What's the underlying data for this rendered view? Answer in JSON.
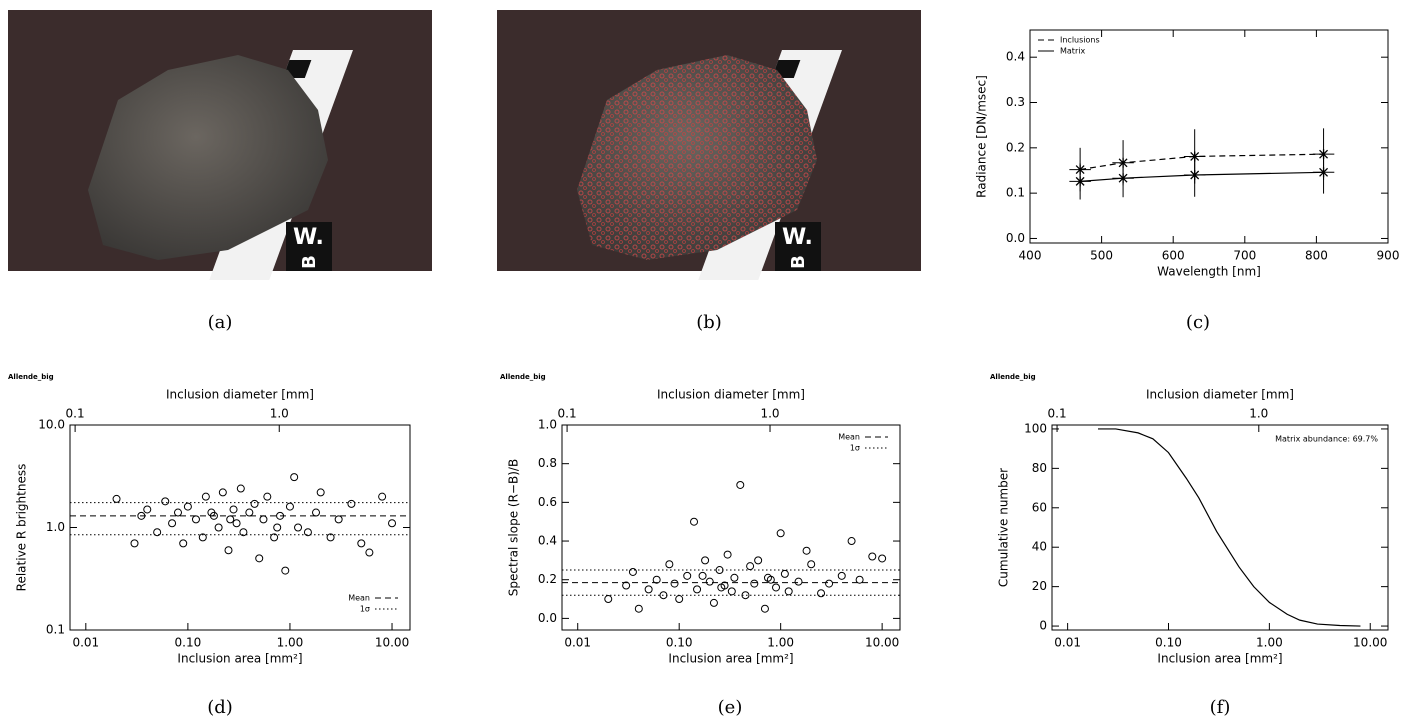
{
  "photos": [
    {
      "ruler_labels": [
        "W.",
        "B"
      ]
    },
    {
      "ruler_labels": [
        "W.",
        "B"
      ]
    }
  ],
  "captions": [
    "(a)",
    "(b)",
    "(c)",
    "(d)",
    "(e)",
    "(f)"
  ],
  "chart_data": [
    {
      "type": "line",
      "xlabel": "Wavelength [nm]",
      "ylabel": "Radiance [DN/msec]",
      "xlim": [
        400,
        900
      ],
      "xticks": [
        400,
        500,
        600,
        700,
        800,
        900
      ],
      "ylim": [
        -0.01,
        0.46
      ],
      "yticks": [
        {
          "value": 0,
          "label": "0.0"
        },
        0.1,
        0.2,
        0.3,
        0.4
      ],
      "legend": "upper left",
      "x": [
        470,
        530,
        630,
        810
      ],
      "series": [
        {
          "name": "Inclusions",
          "color": "#000000",
          "dash": "dashed",
          "values": [
            0.152,
            0.167,
            0.181,
            0.186
          ],
          "errors": [
            0.048,
            0.05,
            0.06,
            0.057
          ],
          "x_errors": [
            15,
            15,
            15,
            15
          ]
        },
        {
          "name": "Matrix",
          "color": "#000000",
          "dash": "solid",
          "values": [
            0.126,
            0.133,
            0.14,
            0.146
          ],
          "errors": [
            0.04,
            0.042,
            0.048,
            0.047
          ],
          "x_errors": [
            15,
            15,
            15,
            15
          ]
        }
      ]
    },
    {
      "type": "scatter",
      "title": "Allende_big",
      "xlabel": "Inclusion area [mm²]",
      "x2label": "Inclusion diameter [mm]",
      "ylabel": "Relative R brightness",
      "xscale": "log",
      "yscale": "log",
      "xlim": [
        0.007,
        15
      ],
      "xticks": [
        0.01,
        {
          "value": 0.1,
          "label": "0.10"
        },
        {
          "value": 1,
          "label": "1.00"
        },
        {
          "value": 10,
          "label": "10.00"
        }
      ],
      "x2lim": [
        0.0944,
        4.37
      ],
      "x2ticks": [
        0.1,
        {
          "value": 1,
          "label": "1.0"
        }
      ],
      "ylim": [
        0.1,
        10
      ],
      "yticks": [
        0.1,
        {
          "value": 1,
          "label": "1.0"
        },
        {
          "value": 10,
          "label": "10.0"
        }
      ],
      "legend": "lower right",
      "color": "#000000",
      "x": [
        0.02,
        0.03,
        0.035,
        0.04,
        0.05,
        0.06,
        0.07,
        0.08,
        0.09,
        0.1,
        0.12,
        0.14,
        0.15,
        0.18,
        0.2,
        0.22,
        0.25,
        0.28,
        0.3,
        0.33,
        0.35,
        0.4,
        0.45,
        0.5,
        0.55,
        0.6,
        0.7,
        0.8,
        0.9,
        1.0,
        1.1,
        1.2,
        1.5,
        1.8,
        2.0,
        2.5,
        3.0,
        4.0,
        5.0,
        6.0,
        8.0,
        10.0,
        0.75,
        0.26,
        0.17
      ],
      "values": [
        1.9,
        0.7,
        1.3,
        1.5,
        0.9,
        1.8,
        1.1,
        1.4,
        0.7,
        1.6,
        1.2,
        0.8,
        2.0,
        1.3,
        1.0,
        2.2,
        0.6,
        1.5,
        1.1,
        2.4,
        0.9,
        1.4,
        1.7,
        0.5,
        1.2,
        2.0,
        0.8,
        1.3,
        0.38,
        1.6,
        3.1,
        1.0,
        0.9,
        1.4,
        2.2,
        0.8,
        1.2,
        1.7,
        0.7,
        0.57,
        2.0,
        1.1,
        1.0,
        1.2,
        1.4
      ],
      "reference_lines": [
        {
          "name": "Mean",
          "dash": "dashed",
          "values": [
            1.3
          ]
        },
        {
          "name": "1σ",
          "dash": "dotted",
          "values": [
            0.85,
            1.75
          ]
        }
      ]
    },
    {
      "type": "scatter",
      "title": "Allende_big",
      "xlabel": "Inclusion area [mm²]",
      "x2label": "Inclusion diameter [mm]",
      "ylabel": "Spectral slope (R−B)/B",
      "xscale": "log",
      "yscale": "linear",
      "xlim": [
        0.007,
        15
      ],
      "xticks": [
        0.01,
        {
          "value": 0.1,
          "label": "0.10"
        },
        {
          "value": 1,
          "label": "1.00"
        },
        {
          "value": 10,
          "label": "10.00"
        }
      ],
      "x2lim": [
        0.0944,
        4.37
      ],
      "x2ticks": [
        0.1,
        {
          "value": 1,
          "label": "1.0"
        }
      ],
      "ylim": [
        -0.06,
        1.0
      ],
      "yticks": [
        {
          "value": 0,
          "label": "0.0"
        },
        0.2,
        0.4,
        0.6,
        0.8,
        {
          "value": 1,
          "label": "1.0"
        }
      ],
      "legend": "upper right",
      "color": "#000000",
      "x": [
        0.02,
        0.03,
        0.035,
        0.04,
        0.05,
        0.06,
        0.07,
        0.08,
        0.09,
        0.1,
        0.12,
        0.14,
        0.15,
        0.18,
        0.2,
        0.22,
        0.25,
        0.28,
        0.3,
        0.33,
        0.35,
        0.4,
        0.45,
        0.5,
        0.55,
        0.6,
        0.7,
        0.8,
        0.9,
        1.0,
        1.1,
        1.2,
        1.5,
        1.8,
        2.0,
        2.5,
        3.0,
        4.0,
        5.0,
        6.0,
        8.0,
        10.0,
        0.75,
        0.26,
        0.17
      ],
      "values": [
        0.1,
        0.17,
        0.24,
        0.05,
        0.15,
        0.2,
        0.12,
        0.28,
        0.18,
        0.1,
        0.22,
        0.5,
        0.15,
        0.3,
        0.19,
        0.08,
        0.25,
        0.17,
        0.33,
        0.14,
        0.21,
        0.69,
        0.12,
        0.27,
        0.18,
        0.3,
        0.05,
        0.2,
        0.16,
        0.44,
        0.23,
        0.14,
        0.19,
        0.35,
        0.28,
        0.13,
        0.18,
        0.22,
        0.4,
        0.2,
        0.32,
        0.31,
        0.21,
        0.16,
        0.22
      ],
      "reference_lines": [
        {
          "name": "Mean",
          "dash": "dashed",
          "values": [
            0.185
          ]
        },
        {
          "name": "1σ",
          "dash": "dotted",
          "values": [
            0.12,
            0.25
          ]
        }
      ]
    },
    {
      "type": "line",
      "title": "Allende_big",
      "xlabel": "Inclusion area [mm²]",
      "x2label": "Inclusion diameter [mm]",
      "ylabel": "Cumulative number",
      "annotation": "Matrix abundance: 69.7%",
      "xscale": "log",
      "yscale": "linear",
      "xlim": [
        0.007,
        15
      ],
      "xticks": [
        0.01,
        {
          "value": 0.1,
          "label": "0.10"
        },
        {
          "value": 1,
          "label": "1.00"
        },
        {
          "value": 10,
          "label": "10.00"
        }
      ],
      "x2lim": [
        0.0944,
        4.37
      ],
      "x2ticks": [
        0.1,
        {
          "value": 1,
          "label": "1.0"
        }
      ],
      "ylim": [
        -2,
        102
      ],
      "yticks": [
        0,
        20,
        40,
        60,
        80,
        100
      ],
      "x": [
        0.02,
        0.03,
        0.05,
        0.07,
        0.1,
        0.15,
        0.2,
        0.3,
        0.5,
        0.7,
        1,
        1.5,
        2,
        3,
        5,
        8
      ],
      "series": [
        {
          "color": "#000000",
          "dash": "solid",
          "values": [
            100,
            100,
            98,
            95,
            88,
            75,
            65,
            48,
            30,
            20,
            12,
            6,
            3,
            1,
            0.3,
            0
          ]
        }
      ]
    }
  ]
}
